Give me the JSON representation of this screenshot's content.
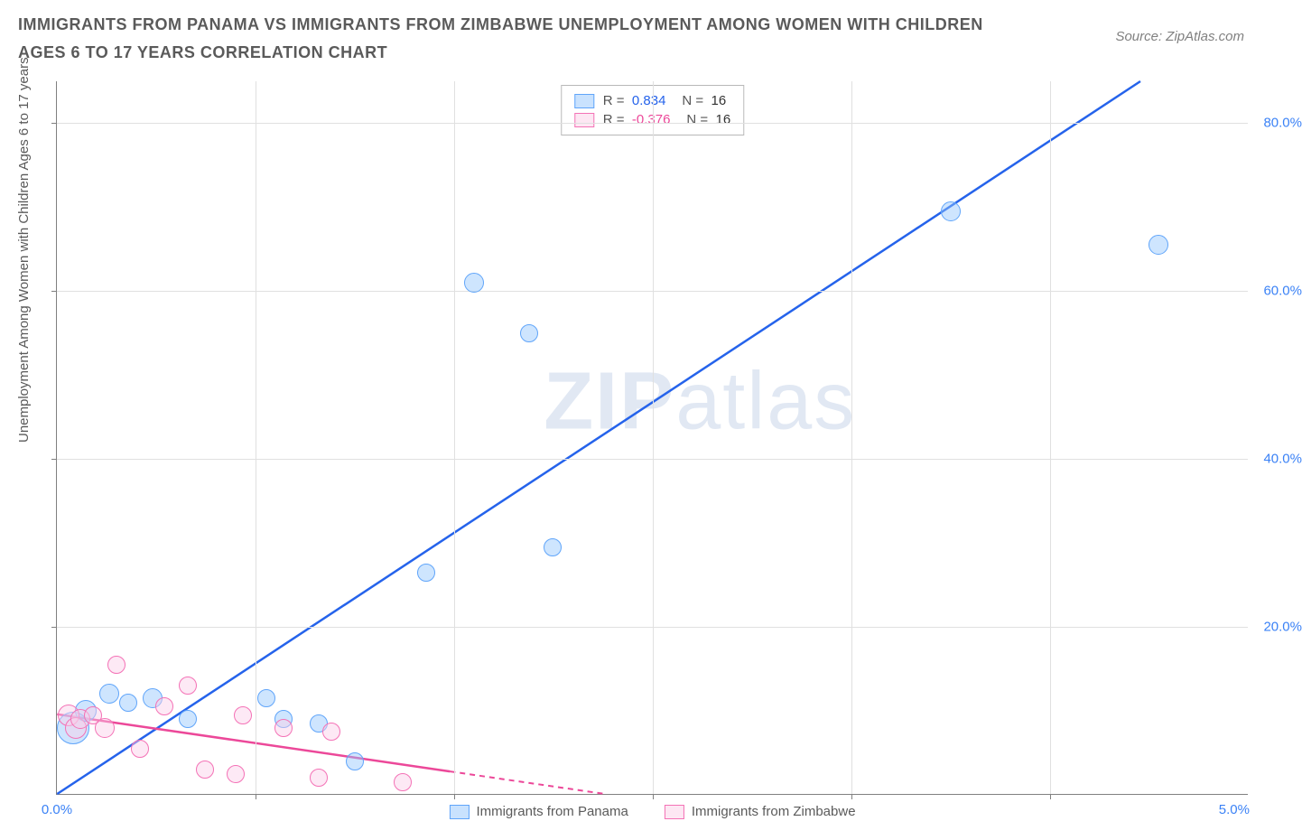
{
  "title": "IMMIGRANTS FROM PANAMA VS IMMIGRANTS FROM ZIMBABWE UNEMPLOYMENT AMONG WOMEN WITH CHILDREN AGES 6 TO 17 YEARS CORRELATION CHART",
  "source": "Source: ZipAtlas.com",
  "ylabel": "Unemployment Among Women with Children Ages 6 to 17 years",
  "watermark": "ZIPatlas",
  "chart": {
    "type": "scatter",
    "x_range": [
      0.0,
      5.0
    ],
    "y_range": [
      0.0,
      85.0
    ],
    "x_ticks": [
      0.0,
      5.0
    ],
    "x_tick_labels": [
      "0.0%",
      "5.0%"
    ],
    "y_ticks": [
      20.0,
      40.0,
      60.0,
      80.0
    ],
    "y_tick_labels": [
      "20.0%",
      "40.0%",
      "60.0%",
      "80.0%"
    ],
    "grid_v_positions": [
      0.833,
      1.666,
      2.5,
      3.333,
      4.166
    ],
    "grid_color": "#e0e0e0",
    "axis_color": "#808080",
    "background_color": "#ffffff",
    "label_color": "#3b82f6",
    "title_color": "#5a5a5a",
    "title_fontsize": 18,
    "label_fontsize": 15,
    "marker_radius_min": 8,
    "marker_radius_max": 18
  },
  "series": [
    {
      "name": "Immigrants from Panama",
      "color_fill": "rgba(147,197,253,0.45)",
      "color_stroke": "#60a5fa",
      "line_color": "#2563eb",
      "R": "0.834",
      "N": "16",
      "trend": {
        "x1": 0.0,
        "y1": 0.0,
        "x2": 4.55,
        "y2": 85.0,
        "dash_after_x": null
      },
      "points": [
        {
          "x": 0.07,
          "y": 8.0,
          "r": 18
        },
        {
          "x": 0.12,
          "y": 10.0,
          "r": 12
        },
        {
          "x": 0.22,
          "y": 12.0,
          "r": 11
        },
        {
          "x": 0.3,
          "y": 11.0,
          "r": 10
        },
        {
          "x": 0.4,
          "y": 11.5,
          "r": 11
        },
        {
          "x": 0.55,
          "y": 9.0,
          "r": 10
        },
        {
          "x": 0.88,
          "y": 11.5,
          "r": 10
        },
        {
          "x": 0.95,
          "y": 9.0,
          "r": 10
        },
        {
          "x": 1.1,
          "y": 8.5,
          "r": 10
        },
        {
          "x": 1.25,
          "y": 4.0,
          "r": 10
        },
        {
          "x": 1.55,
          "y": 26.5,
          "r": 10
        },
        {
          "x": 1.75,
          "y": 61.0,
          "r": 11
        },
        {
          "x": 1.98,
          "y": 55.0,
          "r": 10
        },
        {
          "x": 2.08,
          "y": 29.5,
          "r": 10
        },
        {
          "x": 3.75,
          "y": 69.5,
          "r": 11
        },
        {
          "x": 4.62,
          "y": 65.5,
          "r": 11
        }
      ]
    },
    {
      "name": "Immigrants from Zimbabwe",
      "color_fill": "rgba(251,207,232,0.45)",
      "color_stroke": "#f472b6",
      "line_color": "#ec4899",
      "R": "-0.376",
      "N": "16",
      "trend": {
        "x1": 0.0,
        "y1": 9.5,
        "x2": 2.3,
        "y2": 0.0,
        "dash_after_x": 1.65
      },
      "points": [
        {
          "x": 0.05,
          "y": 9.5,
          "r": 12
        },
        {
          "x": 0.08,
          "y": 8.0,
          "r": 12
        },
        {
          "x": 0.1,
          "y": 9.0,
          "r": 11
        },
        {
          "x": 0.15,
          "y": 9.5,
          "r": 10
        },
        {
          "x": 0.2,
          "y": 8.0,
          "r": 11
        },
        {
          "x": 0.25,
          "y": 15.5,
          "r": 10
        },
        {
          "x": 0.35,
          "y": 5.5,
          "r": 10
        },
        {
          "x": 0.45,
          "y": 10.5,
          "r": 10
        },
        {
          "x": 0.55,
          "y": 13.0,
          "r": 10
        },
        {
          "x": 0.62,
          "y": 3.0,
          "r": 10
        },
        {
          "x": 0.75,
          "y": 2.5,
          "r": 10
        },
        {
          "x": 0.78,
          "y": 9.5,
          "r": 10
        },
        {
          "x": 0.95,
          "y": 8.0,
          "r": 10
        },
        {
          "x": 1.1,
          "y": 2.0,
          "r": 10
        },
        {
          "x": 1.15,
          "y": 7.5,
          "r": 10
        },
        {
          "x": 1.45,
          "y": 1.5,
          "r": 10
        }
      ]
    }
  ],
  "legend": {
    "top_box": {
      "rows": [
        {
          "swatch": "blue",
          "R_label": "R =",
          "R_val": "0.834",
          "N_label": "N =",
          "N_val": "16"
        },
        {
          "swatch": "pink",
          "R_label": "R =",
          "R_val": "-0.376",
          "N_label": "N =",
          "N_val": "16"
        }
      ]
    },
    "bottom": [
      {
        "swatch": "blue",
        "label": "Immigrants from Panama"
      },
      {
        "swatch": "pink",
        "label": "Immigrants from Zimbabwe"
      }
    ]
  }
}
